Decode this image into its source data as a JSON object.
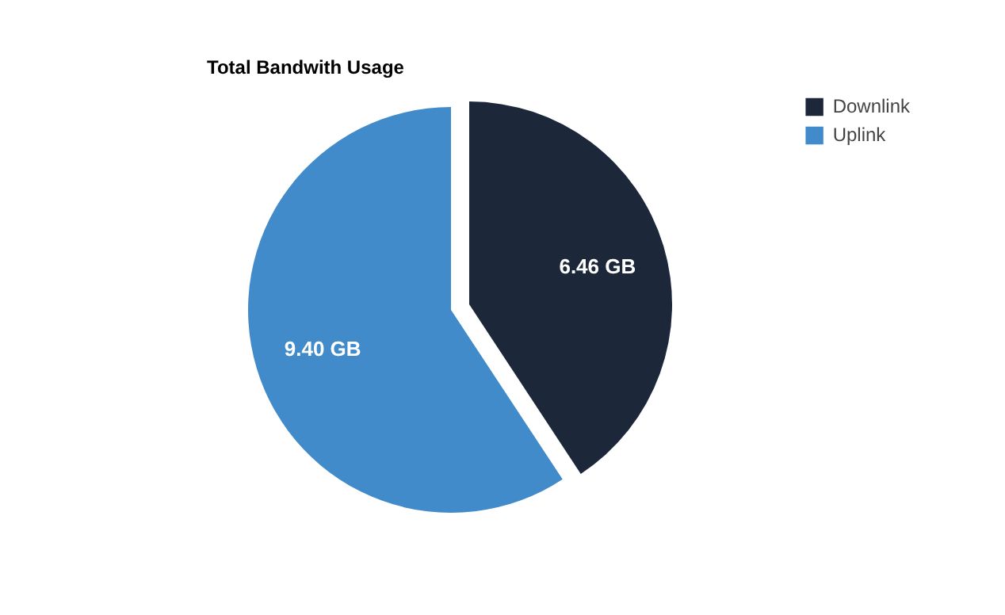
{
  "chart_data": {
    "type": "pie",
    "title": "Total Bandwith Usage",
    "categories": [
      "Downlink",
      "Uplink"
    ],
    "values": [
      6.46,
      9.4
    ],
    "colors": [
      "#1c2839",
      "#428bca"
    ],
    "value_labels": [
      "6.46 GB",
      "9.40 GB"
    ],
    "legend": "top right"
  }
}
